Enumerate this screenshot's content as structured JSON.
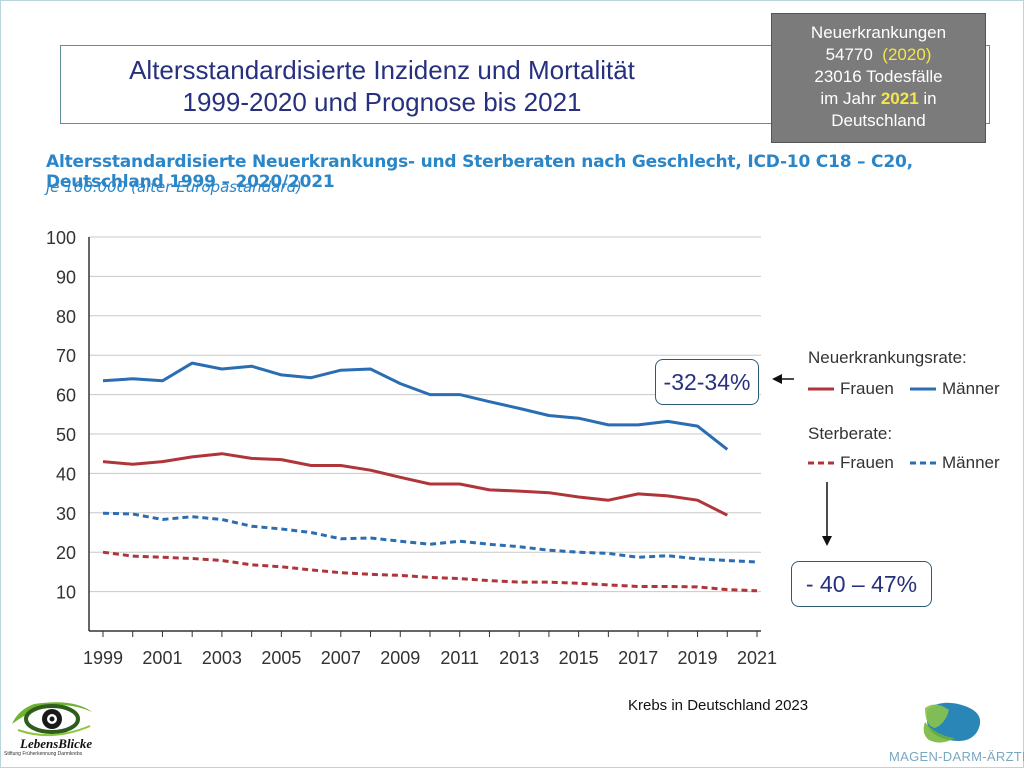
{
  "header": {
    "title_line1": "Altersstandardisierte Inzidenz und Mortalität",
    "title_line2": "1999-2020 und Prognose bis 2021"
  },
  "callout": {
    "line1": "Neuerkrankungen",
    "line2_value": "54770",
    "line2_year": "(2020)",
    "line3": "23016 Todesfälle",
    "line4_prefix": "im Jahr",
    "line4_year": "2021",
    "line4_suffix": "in",
    "line5": "Deutschland"
  },
  "annotations": {
    "incidence_change": "-32-34%",
    "mortality_change": "- 40 – 47%"
  },
  "legend": {
    "incidence_heading": "Neuerkrankungsrate:",
    "mortality_heading": "Sterberate:",
    "women": "Frauen",
    "men": "Männer"
  },
  "source": "Krebs in Deutschland 2023",
  "logos": {
    "left_name": "LebensBlicke",
    "left_tagline": "Stiftung Früherkennung Darmkrebs",
    "right_name": "MAGEN-DARM-ÄRZTE.DE"
  },
  "colors": {
    "women": "#b0353a",
    "men": "#2b6db3",
    "axis": "#333333",
    "grid": "#c8c8c8",
    "title": "#27307f",
    "chart_title": "#2a86c8"
  },
  "chart_data": {
    "type": "line",
    "title": "Altersstandardisierte Neuerkrankungs- und Sterberaten nach Geschlecht, ICD-10 C18 – C20, Deutschland 1999 – 2020/2021",
    "subtitle": "je 100.000 (alter Europastandard)",
    "xlabel": "",
    "ylabel": "",
    "ylim": [
      0,
      100
    ],
    "yticks": [
      10,
      20,
      30,
      40,
      50,
      60,
      70,
      80,
      90,
      100
    ],
    "xlim": [
      1999,
      2021
    ],
    "xticks": [
      1999,
      2001,
      2003,
      2005,
      2007,
      2009,
      2011,
      2013,
      2015,
      2017,
      2019,
      2021
    ],
    "grid": true,
    "legend_position": "right",
    "series": [
      {
        "name": "Männer",
        "group": "Neuerkrankungsrate",
        "style": "solid",
        "x": [
          1999,
          2000,
          2001,
          2002,
          2003,
          2004,
          2005,
          2006,
          2007,
          2008,
          2009,
          2010,
          2011,
          2012,
          2013,
          2014,
          2015,
          2016,
          2017,
          2018,
          2019,
          2020
        ],
        "values": [
          63.5,
          64.0,
          63.5,
          68.0,
          66.5,
          67.2,
          65.0,
          64.3,
          66.2,
          66.5,
          62.8,
          60.0,
          60.0,
          58.2,
          56.5,
          54.7,
          54.0,
          52.3,
          52.3,
          53.2,
          52.0,
          46.1
        ]
      },
      {
        "name": "Frauen",
        "group": "Neuerkrankungsrate",
        "style": "solid",
        "x": [
          1999,
          2000,
          2001,
          2002,
          2003,
          2004,
          2005,
          2006,
          2007,
          2008,
          2009,
          2010,
          2011,
          2012,
          2013,
          2014,
          2015,
          2016,
          2017,
          2018,
          2019,
          2020
        ],
        "values": [
          43.0,
          42.3,
          43.0,
          44.2,
          45.0,
          43.8,
          43.5,
          42.0,
          42.0,
          40.8,
          39.0,
          37.3,
          37.3,
          35.8,
          35.5,
          35.1,
          34.0,
          33.2,
          34.8,
          34.3,
          33.2,
          29.4
        ]
      },
      {
        "name": "Männer",
        "group": "Sterberate",
        "style": "dashed",
        "x": [
          1999,
          2000,
          2001,
          2002,
          2003,
          2004,
          2005,
          2006,
          2007,
          2008,
          2009,
          2010,
          2011,
          2012,
          2013,
          2014,
          2015,
          2016,
          2017,
          2018,
          2019,
          2020,
          2021
        ],
        "values": [
          29.9,
          29.7,
          28.3,
          29.0,
          28.3,
          26.6,
          25.9,
          25.0,
          23.4,
          23.6,
          22.8,
          22.0,
          22.8,
          22.0,
          21.4,
          20.5,
          20.0,
          19.7,
          18.7,
          19.1,
          18.3,
          17.9,
          17.5
        ]
      },
      {
        "name": "Frauen",
        "group": "Sterberate",
        "style": "dashed",
        "x": [
          1999,
          2000,
          2001,
          2002,
          2003,
          2004,
          2005,
          2006,
          2007,
          2008,
          2009,
          2010,
          2011,
          2012,
          2013,
          2014,
          2015,
          2016,
          2017,
          2018,
          2019,
          2020,
          2021
        ],
        "values": [
          20.0,
          19.0,
          18.7,
          18.4,
          17.9,
          16.8,
          16.3,
          15.5,
          14.8,
          14.4,
          14.1,
          13.6,
          13.3,
          12.8,
          12.4,
          12.4,
          12.1,
          11.7,
          11.3,
          11.3,
          11.2,
          10.5,
          10.2
        ]
      }
    ]
  }
}
